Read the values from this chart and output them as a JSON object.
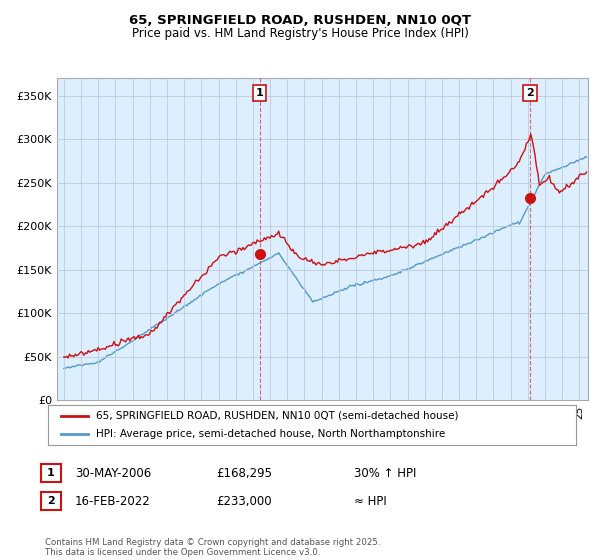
{
  "title": "65, SPRINGFIELD ROAD, RUSHDEN, NN10 0QT",
  "subtitle": "Price paid vs. HM Land Registry's House Price Index (HPI)",
  "legend_line1": "65, SPRINGFIELD ROAD, RUSHDEN, NN10 0QT (semi-detached house)",
  "legend_line2": "HPI: Average price, semi-detached house, North Northamptonshire",
  "annotation1_date": "30-MAY-2006",
  "annotation1_price": "£168,295",
  "annotation1_hpi": "30% ↑ HPI",
  "annotation1_year": 2006.4,
  "annotation1_value": 168000,
  "annotation2_date": "16-FEB-2022",
  "annotation2_price": "£233,000",
  "annotation2_hpi": "≈ HPI",
  "annotation2_year": 2022.12,
  "annotation2_value": 233000,
  "footer": "Contains HM Land Registry data © Crown copyright and database right 2025.\nThis data is licensed under the Open Government Licence v3.0.",
  "price_color": "#cc1111",
  "hpi_color": "#5599cc",
  "chart_bg_color": "#ddeeff",
  "background_color": "#ffffff",
  "grid_color": "#bbccdd",
  "ylim": [
    0,
    370000
  ],
  "xlim_start": 1994.6,
  "xlim_end": 2025.5,
  "yticks": [
    0,
    50000,
    100000,
    150000,
    200000,
    250000,
    300000,
    350000
  ]
}
